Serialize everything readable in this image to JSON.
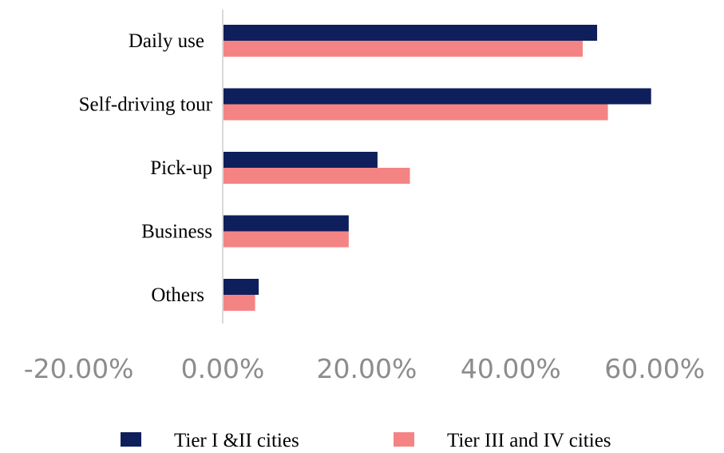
{
  "chart_data": {
    "type": "bar",
    "orientation": "horizontal",
    "categories": [
      "Daily use",
      "Self-driving tour",
      "Pick-up",
      "Business",
      "Others"
    ],
    "series": [
      {
        "name": "Tier I &II cities",
        "color": "#0f1f5c",
        "values": [
          52.0,
          59.5,
          21.5,
          17.5,
          5.0
        ]
      },
      {
        "name": "Tier III and IV cities",
        "color": "#f48484",
        "values": [
          50.0,
          53.5,
          26.0,
          17.5,
          4.5
        ]
      }
    ],
    "xlim": [
      -20,
      60
    ],
    "xticks": [
      -20,
      0,
      20,
      40,
      60
    ],
    "xtick_labels": [
      "-20.00%",
      "0.00%",
      "20.00%",
      "40.00%",
      "60.00%"
    ],
    "legend_position": "bottom",
    "grid": false,
    "axis_line_color": "#d9d9d9"
  }
}
